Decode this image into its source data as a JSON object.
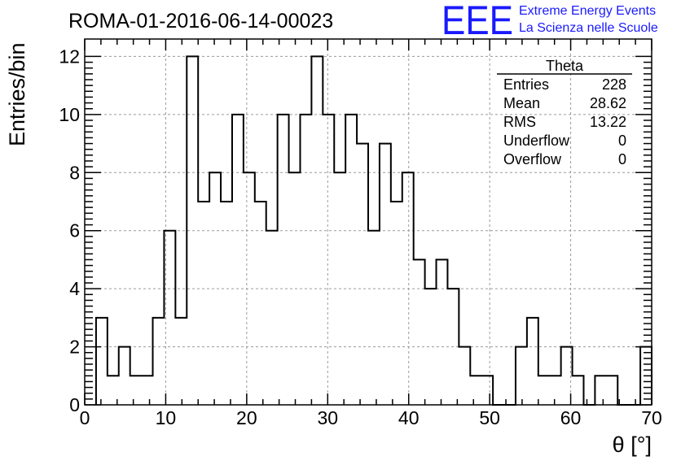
{
  "chart_data": {
    "type": "bar",
    "title": "ROMA-01-2016-06-14-00023",
    "xlabel": "θ [°]",
    "ylabel": "Entries/bin",
    "xlim": [
      0,
      70
    ],
    "ylim": [
      0,
      12.6
    ],
    "x_ticks": [
      0,
      10,
      20,
      30,
      40,
      50,
      60,
      70
    ],
    "y_ticks": [
      0,
      2,
      4,
      6,
      8,
      10,
      12
    ],
    "grid": true,
    "bin_width": 1.4,
    "bin_edges_start": 1.4,
    "values": [
      3,
      1,
      2,
      1,
      1,
      3,
      6,
      3,
      12,
      7,
      8,
      7,
      10,
      8,
      7,
      6,
      10,
      8,
      10,
      12,
      10,
      8,
      10,
      9,
      6,
      9,
      7,
      8,
      5,
      4,
      5,
      4,
      2,
      1,
      1,
      0,
      0,
      2,
      3,
      1,
      1,
      2,
      1,
      0,
      1,
      1,
      0,
      0,
      2
    ],
    "stats": {
      "name": "Theta",
      "rows": [
        {
          "label": "Entries",
          "value": "228"
        },
        {
          "label": "Mean",
          "value": "28.62"
        },
        {
          "label": "RMS",
          "value": "13.22"
        },
        {
          "label": "Underflow",
          "value": "0"
        },
        {
          "label": "Overflow",
          "value": "0"
        }
      ]
    }
  },
  "logo": {
    "mark": "EEE",
    "line1": "Extreme Energy Events",
    "line2": "La Scienza nelle Scuole",
    "color": "#1a1aff"
  }
}
